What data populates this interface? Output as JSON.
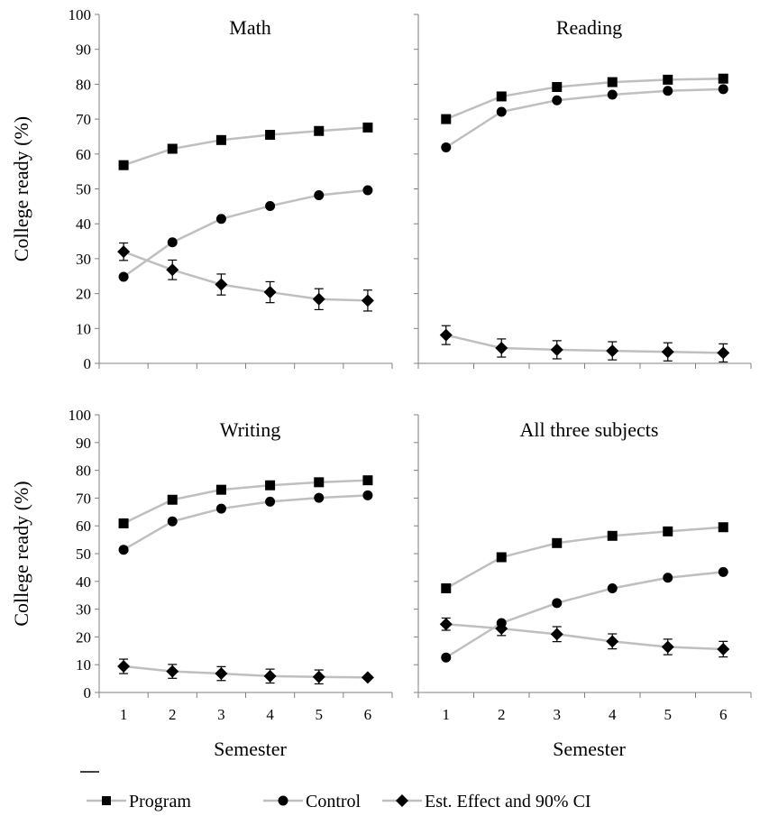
{
  "chart_data": {
    "type": "line",
    "ylabel": "College ready (%)",
    "xlabel": "Semester",
    "x": [
      1,
      2,
      3,
      4,
      5,
      6
    ],
    "ylim": [
      0,
      100
    ],
    "yticks": [
      0,
      10,
      20,
      30,
      40,
      50,
      60,
      70,
      80,
      90,
      100
    ],
    "grid": false,
    "legend_position": "bottom",
    "series_names": [
      "Program",
      "Control",
      "Est. Effect and 90% CI"
    ],
    "colors": {
      "line": "#bfbfbf",
      "marker": "#000000",
      "axis": "#808080"
    },
    "panels": [
      {
        "title": "Math",
        "program": [
          56.8,
          61.5,
          64.0,
          65.5,
          66.6,
          67.6
        ],
        "control": [
          24.8,
          34.7,
          41.4,
          45.1,
          48.2,
          49.6
        ],
        "effect": [
          32.0,
          26.8,
          22.6,
          20.4,
          18.4,
          18.0
        ],
        "ci_half_width": [
          2.5,
          2.8,
          3.0,
          3.0,
          3.0,
          3.0
        ]
      },
      {
        "title": "Reading",
        "program": [
          70.0,
          76.5,
          79.2,
          80.6,
          81.3,
          81.6
        ],
        "control": [
          61.9,
          72.1,
          75.4,
          77.0,
          78.1,
          78.6
        ],
        "effect": [
          8.1,
          4.4,
          3.9,
          3.6,
          3.3,
          3.0
        ],
        "ci_half_width": [
          2.7,
          2.6,
          2.6,
          2.6,
          2.6,
          2.6
        ]
      },
      {
        "title": "Writing",
        "program": [
          60.9,
          69.4,
          73.0,
          74.6,
          75.7,
          76.4
        ],
        "control": [
          51.4,
          61.6,
          66.2,
          68.7,
          70.1,
          71.0
        ],
        "effect": [
          9.4,
          7.6,
          6.8,
          5.9,
          5.6,
          5.4
        ],
        "ci_half_width": [
          2.6,
          2.5,
          2.5,
          2.5,
          2.5,
          0.0
        ]
      },
      {
        "title": "All three subjects",
        "program": [
          37.5,
          48.7,
          53.8,
          56.4,
          58.0,
          59.5
        ],
        "control": [
          12.6,
          25.0,
          32.2,
          37.5,
          41.3,
          43.4
        ],
        "effect": [
          24.6,
          23.0,
          21.0,
          18.4,
          16.4,
          15.6
        ],
        "ci_half_width": [
          2.2,
          2.5,
          2.7,
          2.7,
          2.8,
          2.8
        ]
      }
    ]
  }
}
